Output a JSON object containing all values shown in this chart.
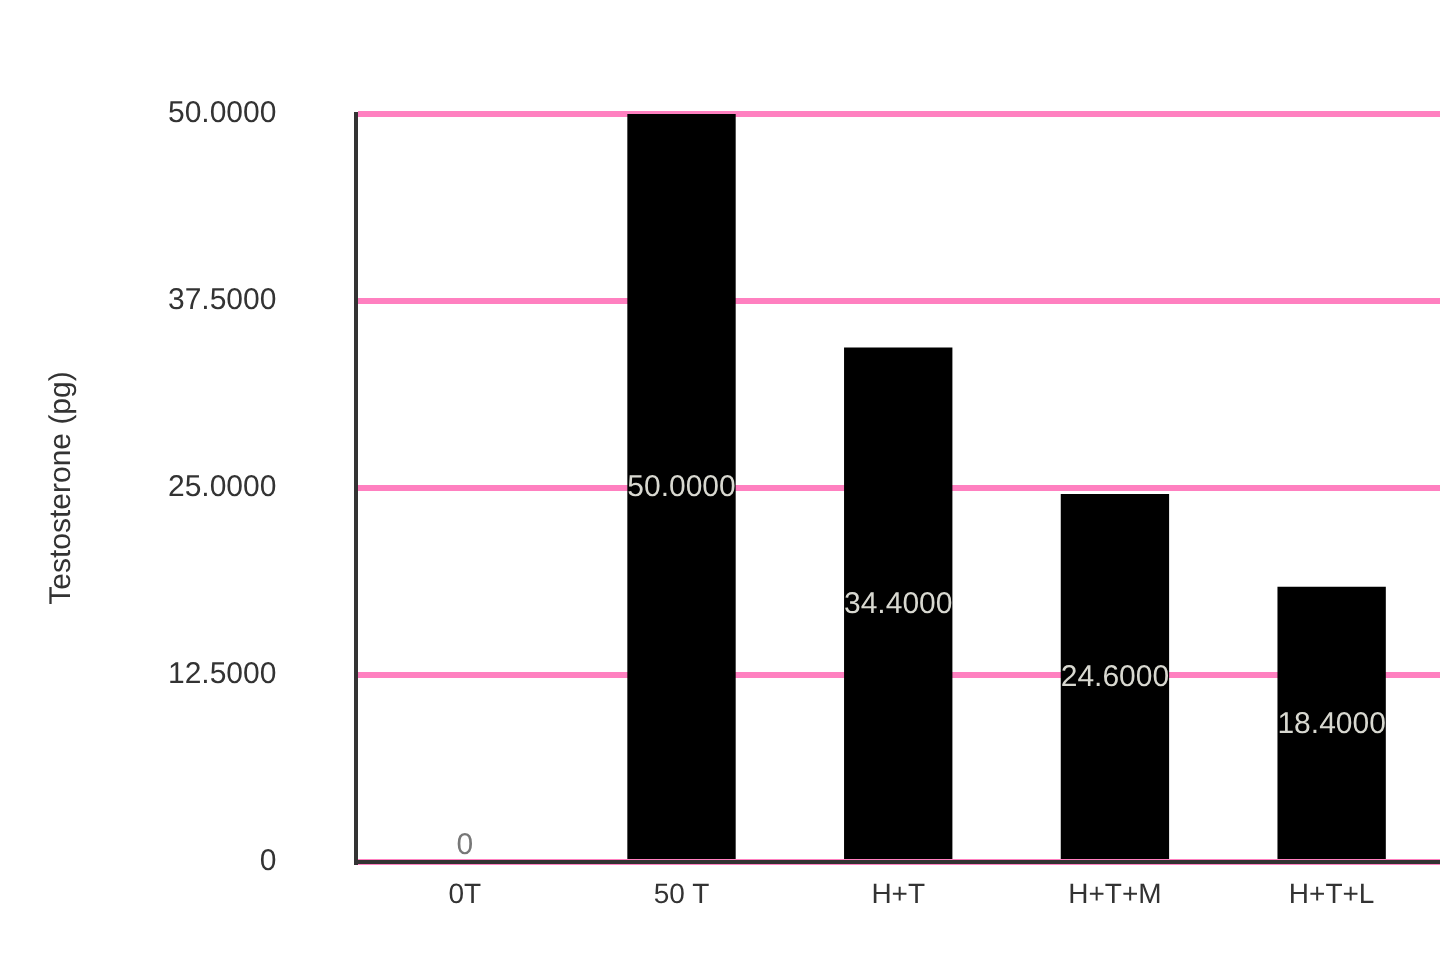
{
  "chart_data": {
    "type": "bar",
    "ylabel": "Testosterone (pg)",
    "categories": [
      "0T",
      "50 T",
      "H+T",
      "H+T+M",
      "H+T+L"
    ],
    "values": [
      0,
      50,
      34.4,
      24.6,
      18.4
    ],
    "value_labels": [
      "0",
      "50.0000",
      "34.4000",
      "24.6000",
      "18.4000"
    ],
    "color": "#000000",
    "ylim": [
      0,
      50
    ],
    "yticks": [
      {
        "value": 0,
        "label": "0"
      },
      {
        "value": 12.5,
        "label": "12.5000"
      },
      {
        "value": 25,
        "label": "25.0000"
      },
      {
        "value": 37.5,
        "label": "37.5000"
      },
      {
        "value": 50,
        "label": "50.0000"
      }
    ],
    "grid": "y"
  }
}
